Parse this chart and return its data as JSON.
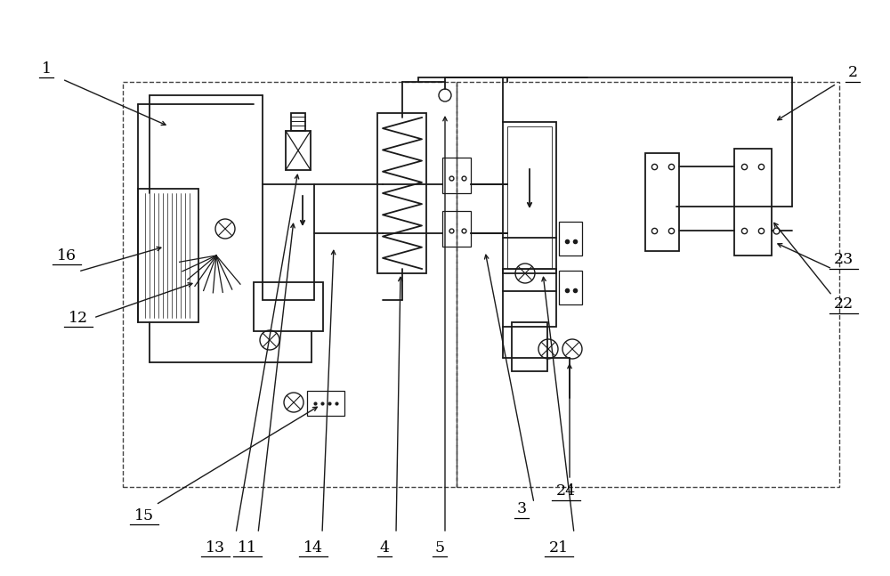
{
  "bg_color": "#ffffff",
  "line_color": "#1a1a1a",
  "dashed_color": "#444444",
  "fig_width": 10.0,
  "fig_height": 6.47
}
